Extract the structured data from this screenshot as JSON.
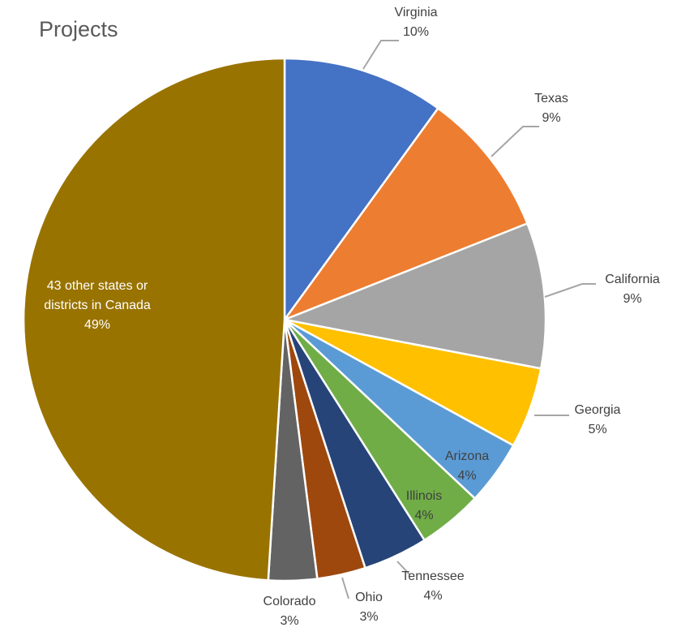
{
  "chart_data": {
    "type": "pie",
    "title": "Projects",
    "slices": [
      {
        "key": "virginia",
        "label_lines": [
          "Virginia"
        ],
        "value": 10,
        "value_label": "10%",
        "color": "#4472C4"
      },
      {
        "key": "texas",
        "label_lines": [
          "Texas"
        ],
        "value": 9,
        "value_label": "9%",
        "color": "#ED7D31"
      },
      {
        "key": "california",
        "label_lines": [
          "California"
        ],
        "value": 9,
        "value_label": "9%",
        "color": "#A5A5A5"
      },
      {
        "key": "georgia",
        "label_lines": [
          "Georgia"
        ],
        "value": 5,
        "value_label": "5%",
        "color": "#FFC000"
      },
      {
        "key": "arizona",
        "label_lines": [
          "Arizona"
        ],
        "value": 4,
        "value_label": "4%",
        "color": "#5B9BD5"
      },
      {
        "key": "illinois",
        "label_lines": [
          "Illinois"
        ],
        "value": 4,
        "value_label": "4%",
        "color": "#70AD47"
      },
      {
        "key": "tennessee",
        "label_lines": [
          "Tennessee"
        ],
        "value": 4,
        "value_label": "4%",
        "color": "#264478"
      },
      {
        "key": "ohio",
        "label_lines": [
          "Ohio"
        ],
        "value": 3,
        "value_label": "3%",
        "color": "#9E480E"
      },
      {
        "key": "colorado",
        "label_lines": [
          "Colorado"
        ],
        "value": 3,
        "value_label": "3%",
        "color": "#636363"
      },
      {
        "key": "other",
        "label_lines": [
          "43 other states or",
          "districts in Canada"
        ],
        "value": 49,
        "value_label": "49%",
        "color": "#997300"
      }
    ]
  }
}
